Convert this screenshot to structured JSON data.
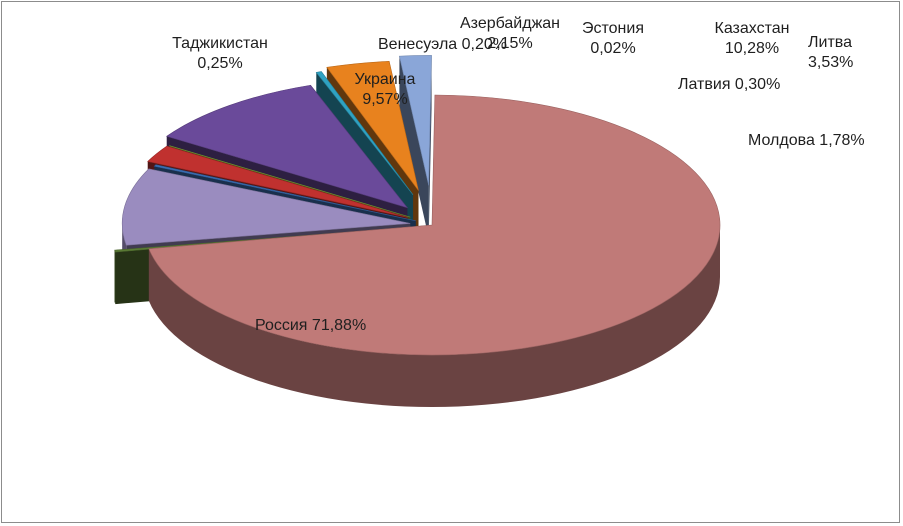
{
  "chart_data": {
    "type": "pie",
    "style": "3d-exploded",
    "title": "",
    "legend": "none",
    "slices": [
      {
        "name": "Россия",
        "value": 71.88,
        "value_label": "71,88%",
        "color": "#c07a78"
      },
      {
        "name": "Таджикистан",
        "value": 0.25,
        "value_label": "0,25%",
        "color": "#5a7a35"
      },
      {
        "name": "Украина",
        "value": 9.57,
        "value_label": "9,57%",
        "color": "#9a8cbf"
      },
      {
        "name": "Венесуэла",
        "value": 0.2,
        "value_label": "0,20%",
        "color": "#3b6fb5"
      },
      {
        "name": "Азербайджан",
        "value": 2.15,
        "value_label": "2,15%",
        "color": "#c0312f"
      },
      {
        "name": "Эстония",
        "value": 0.02,
        "value_label": "0,02%",
        "color": "#8fb53a"
      },
      {
        "name": "Казахстан",
        "value": 10.28,
        "value_label": "10,28%",
        "color": "#6a4a9a"
      },
      {
        "name": "Латвия",
        "value": 0.3,
        "value_label": "0,30%",
        "color": "#2fa2c2"
      },
      {
        "name": "Литва",
        "value": 3.53,
        "value_label": "3,53%",
        "color": "#e8821e"
      },
      {
        "name": "Молдова",
        "value": 1.78,
        "value_label": "1,78%",
        "color": "#8aa6d8"
      }
    ]
  }
}
